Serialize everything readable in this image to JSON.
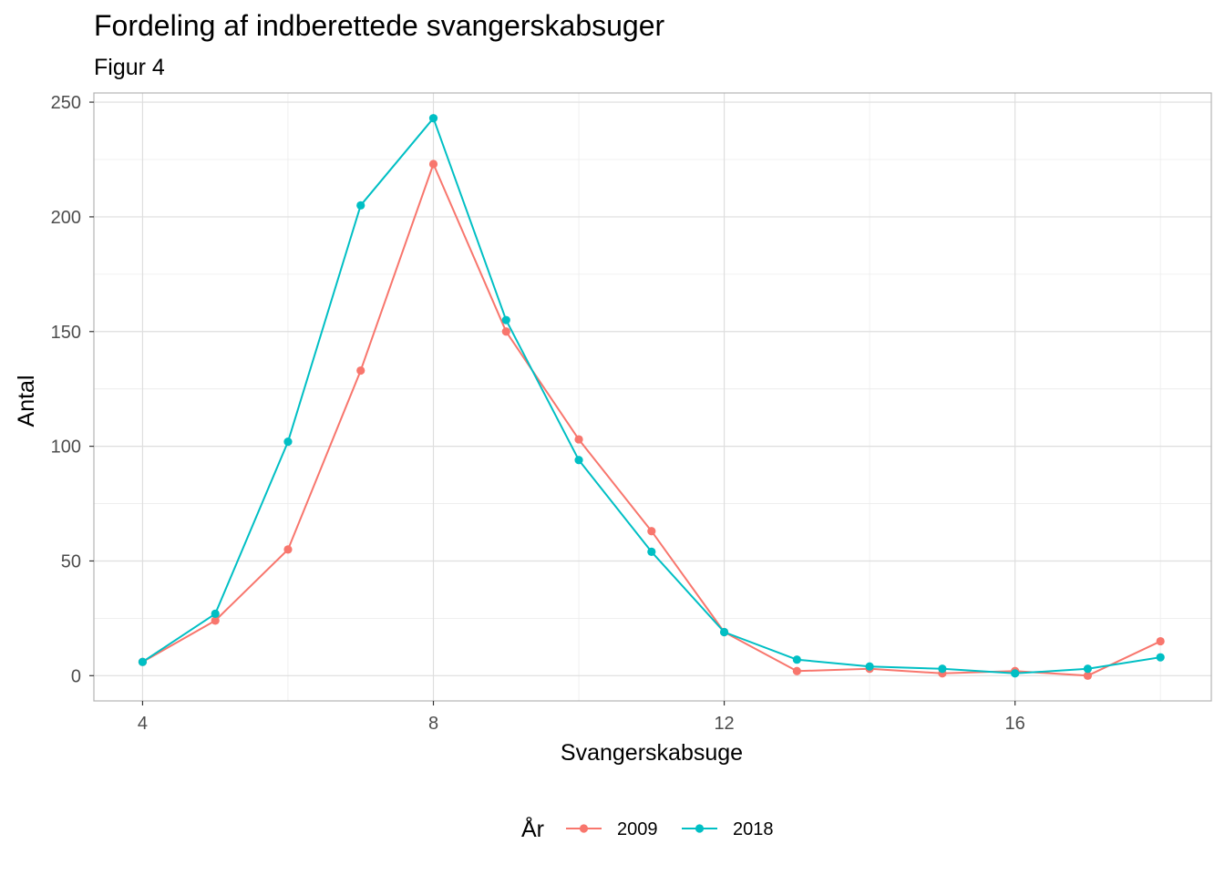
{
  "chart_data": {
    "type": "line",
    "title": "Fordeling af indberettede svangerskabsuger",
    "subtitle": "Figur 4",
    "xlabel": "Svangerskabsuge",
    "ylabel": "Antal",
    "x": [
      4,
      5,
      6,
      7,
      8,
      9,
      10,
      11,
      12,
      13,
      14,
      15,
      16,
      17,
      18
    ],
    "xlim": [
      3.33,
      18.7
    ],
    "ylim": [
      -11,
      254
    ],
    "xticks": [
      4,
      8,
      12,
      16
    ],
    "yticks": [
      0,
      50,
      100,
      150,
      200,
      250
    ],
    "grid": true,
    "legend": {
      "title": "År",
      "position": "bottom"
    },
    "series": [
      {
        "name": "2009",
        "color": "#F8766D",
        "values": [
          6,
          24,
          55,
          133,
          223,
          150,
          103,
          63,
          19,
          2,
          3,
          1,
          2,
          0,
          15
        ]
      },
      {
        "name": "2018",
        "color": "#00BFC4",
        "values": [
          6,
          27,
          102,
          205,
          243,
          155,
          94,
          54,
          19,
          7,
          4,
          3,
          1,
          3,
          8
        ]
      }
    ]
  }
}
